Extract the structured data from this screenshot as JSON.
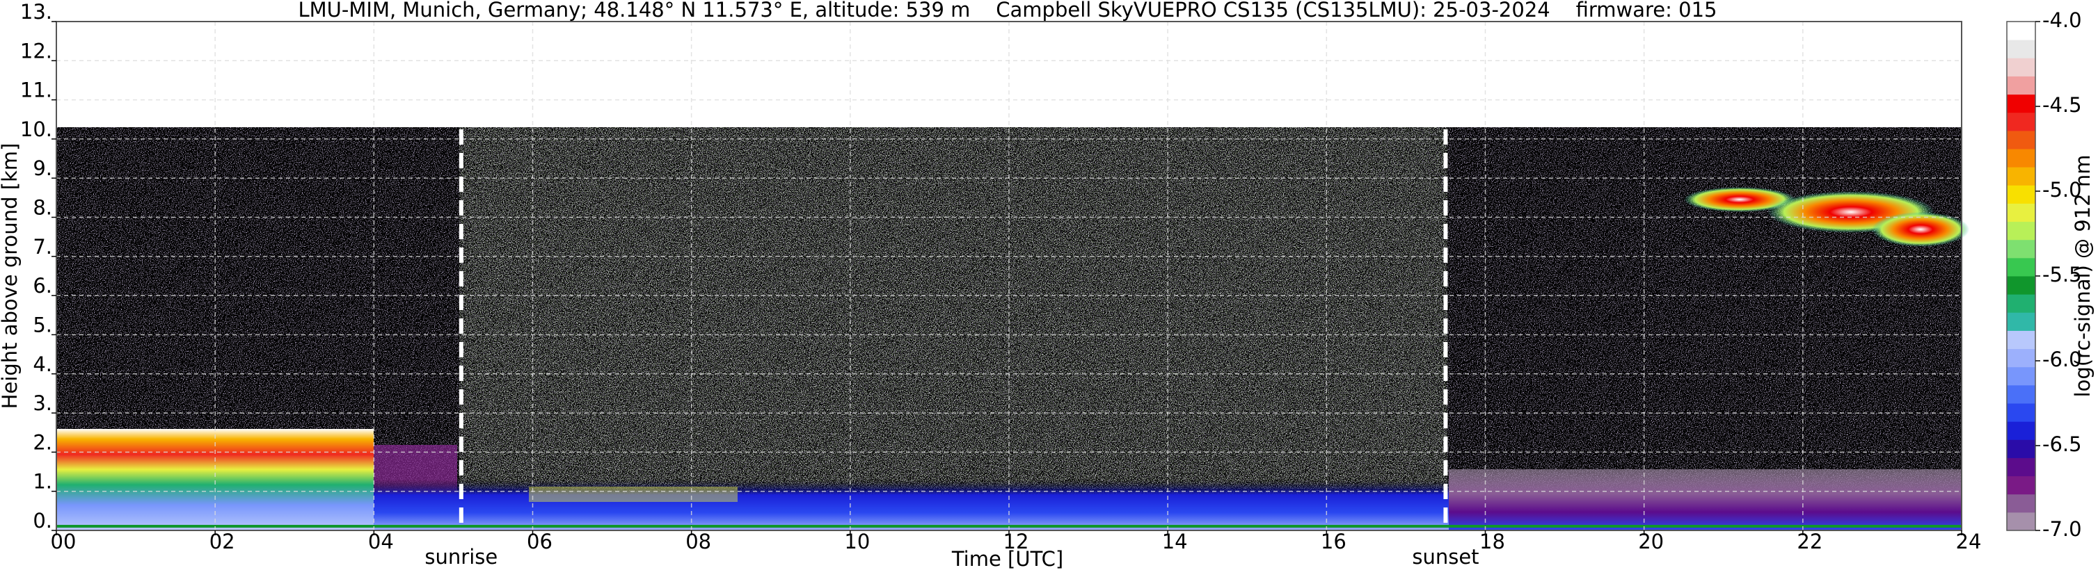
{
  "chart_data": {
    "type": "heatmap",
    "title": "LMU-MIM, Munich, Germany; 48.148° N 11.573° E, altitude: 539 m    Campbell SkyVUEPRO CS135 (CS135LMU): 25-03-2024    firmware: 015",
    "xlabel": "Time [UTC]",
    "ylabel": "Height above ground [km]",
    "xlim": [
      0,
      24
    ],
    "xticks": [
      {
        "value": 0,
        "label": "00"
      },
      {
        "value": 2,
        "label": "02"
      },
      {
        "value": 4,
        "label": "04"
      },
      {
        "value": 6,
        "label": "06"
      },
      {
        "value": 8,
        "label": "08"
      },
      10,
      12,
      14,
      16,
      18,
      20,
      22,
      24
    ],
    "ylim": [
      0,
      13
    ],
    "yticks": [
      {
        "value": 0,
        "label": "0."
      },
      {
        "value": 1,
        "label": "1."
      },
      {
        "value": 2,
        "label": "2."
      },
      {
        "value": 3,
        "label": "3."
      },
      {
        "value": 4,
        "label": "4."
      },
      {
        "value": 5,
        "label": "5."
      },
      {
        "value": 6,
        "label": "6."
      },
      {
        "value": 7,
        "label": "7."
      },
      {
        "value": 8,
        "label": "8."
      },
      {
        "value": 9,
        "label": "9."
      },
      {
        "value": 10,
        "label": "10."
      },
      {
        "value": 11,
        "label": "11."
      },
      {
        "value": 12,
        "label": "12."
      },
      {
        "value": 13,
        "label": "13."
      }
    ],
    "grid": true,
    "annotations": [
      {
        "label": "sunrise",
        "x": 5.1
      },
      {
        "label": "sunset",
        "x": 17.5
      }
    ],
    "colorbar": {
      "label": "log(rc-signal) @ 912 nm",
      "lim": [
        -7,
        -4
      ],
      "ticks": [
        {
          "value": -7,
          "label": "-7.0"
        },
        {
          "value": -6.5,
          "label": "-6.5"
        },
        {
          "value": -6,
          "label": "-6.0"
        },
        {
          "value": -5.5,
          "label": "-5.5"
        },
        {
          "value": -5,
          "label": "-5.0"
        },
        {
          "value": -4.5,
          "label": "-4.5"
        },
        {
          "value": -4,
          "label": "-4.0"
        }
      ],
      "colors": [
        "#a690ab",
        "#8a5c96",
        "#7a1a86",
        "#5c0c8c",
        "#2a0ca8",
        "#1a20d8",
        "#2a48f0",
        "#4a70f8",
        "#7896fc",
        "#9cb0fc",
        "#b8c8fc",
        "#30b8a8",
        "#20b070",
        "#10962c",
        "#38c850",
        "#7ee070",
        "#b8f058",
        "#e8f040",
        "#f8e000",
        "#f8b400",
        "#f88800",
        "#f05a10",
        "#f02820",
        "#f00000",
        "#f0a0a0",
        "#f0d0d0",
        "#e8e8e8",
        "#ffffff"
      ]
    }
  }
}
